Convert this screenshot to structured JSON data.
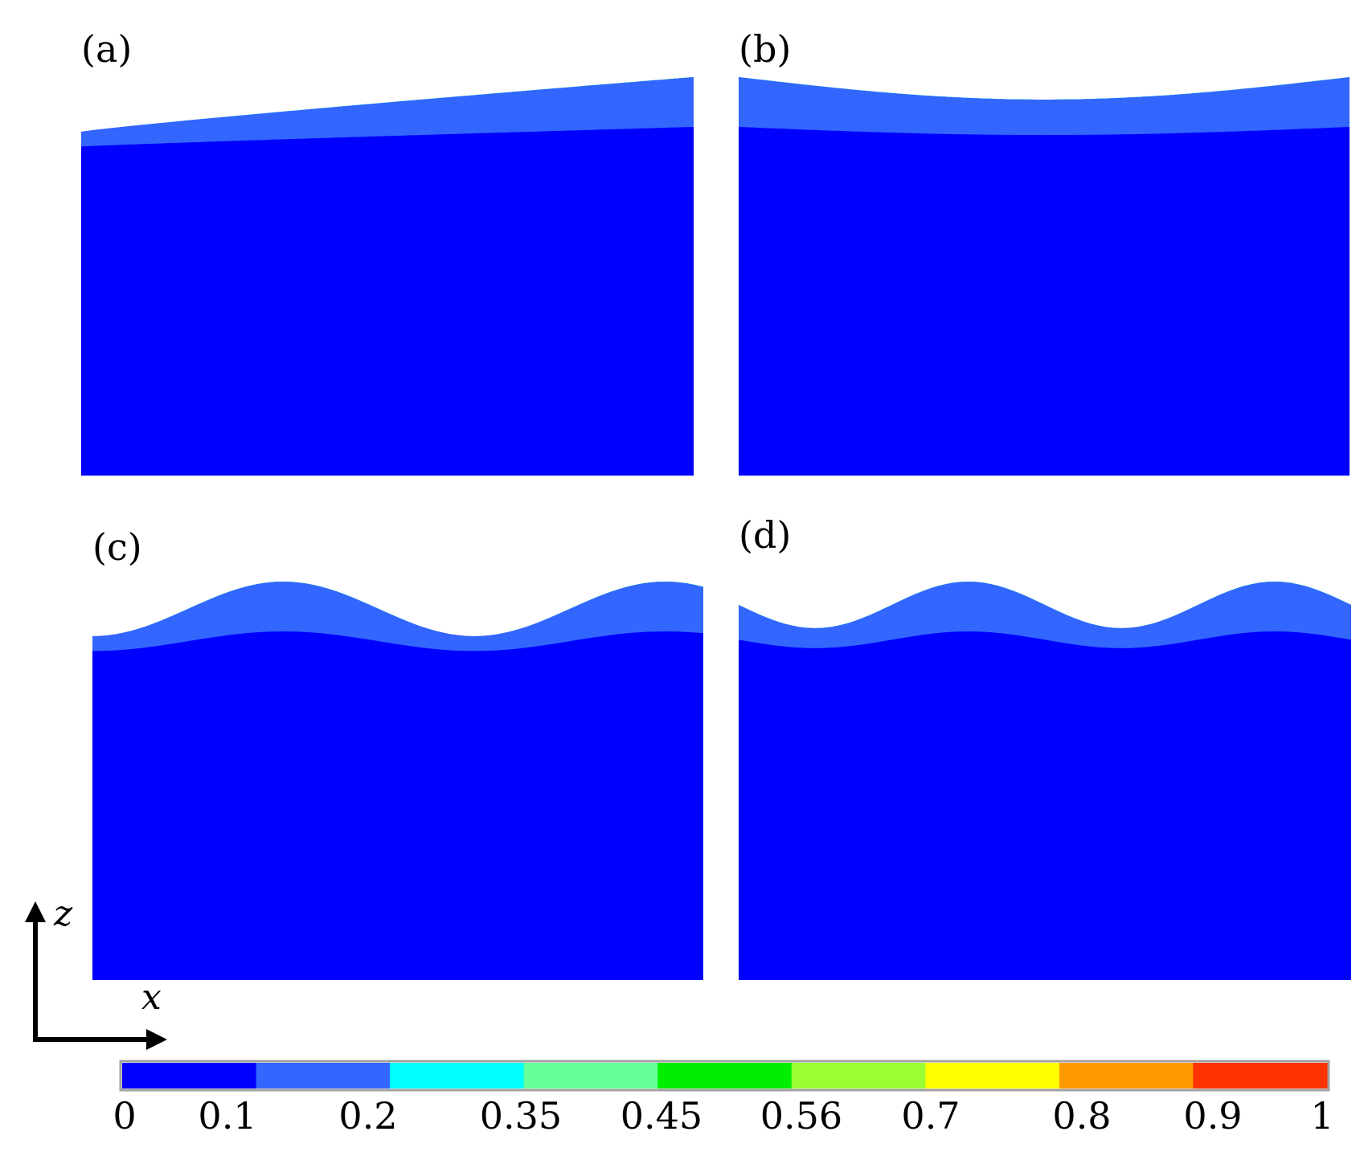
{
  "panels": [
    {
      "label": "(a)",
      "profile": "rise_right"
    },
    {
      "label": "(b)",
      "profile": "dip_center"
    },
    {
      "label": "(c)",
      "profile": "humps_offset"
    },
    {
      "label": "(d)",
      "profile": "humps_two"
    }
  ],
  "axes": {
    "vertical": "z",
    "horizontal": "x"
  },
  "colorbar": {
    "ticks": [
      "0",
      "0.1",
      "0.2",
      "0.35",
      "0.45",
      "0.56",
      "0.7",
      "0.8",
      "0.9",
      "1"
    ],
    "colors": [
      "#0000ff",
      "#3366ff",
      "#00ffff",
      "#66ff99",
      "#00ee00",
      "#99ff33",
      "#ffff00",
      "#ff9900",
      "#ff3300"
    ]
  }
}
